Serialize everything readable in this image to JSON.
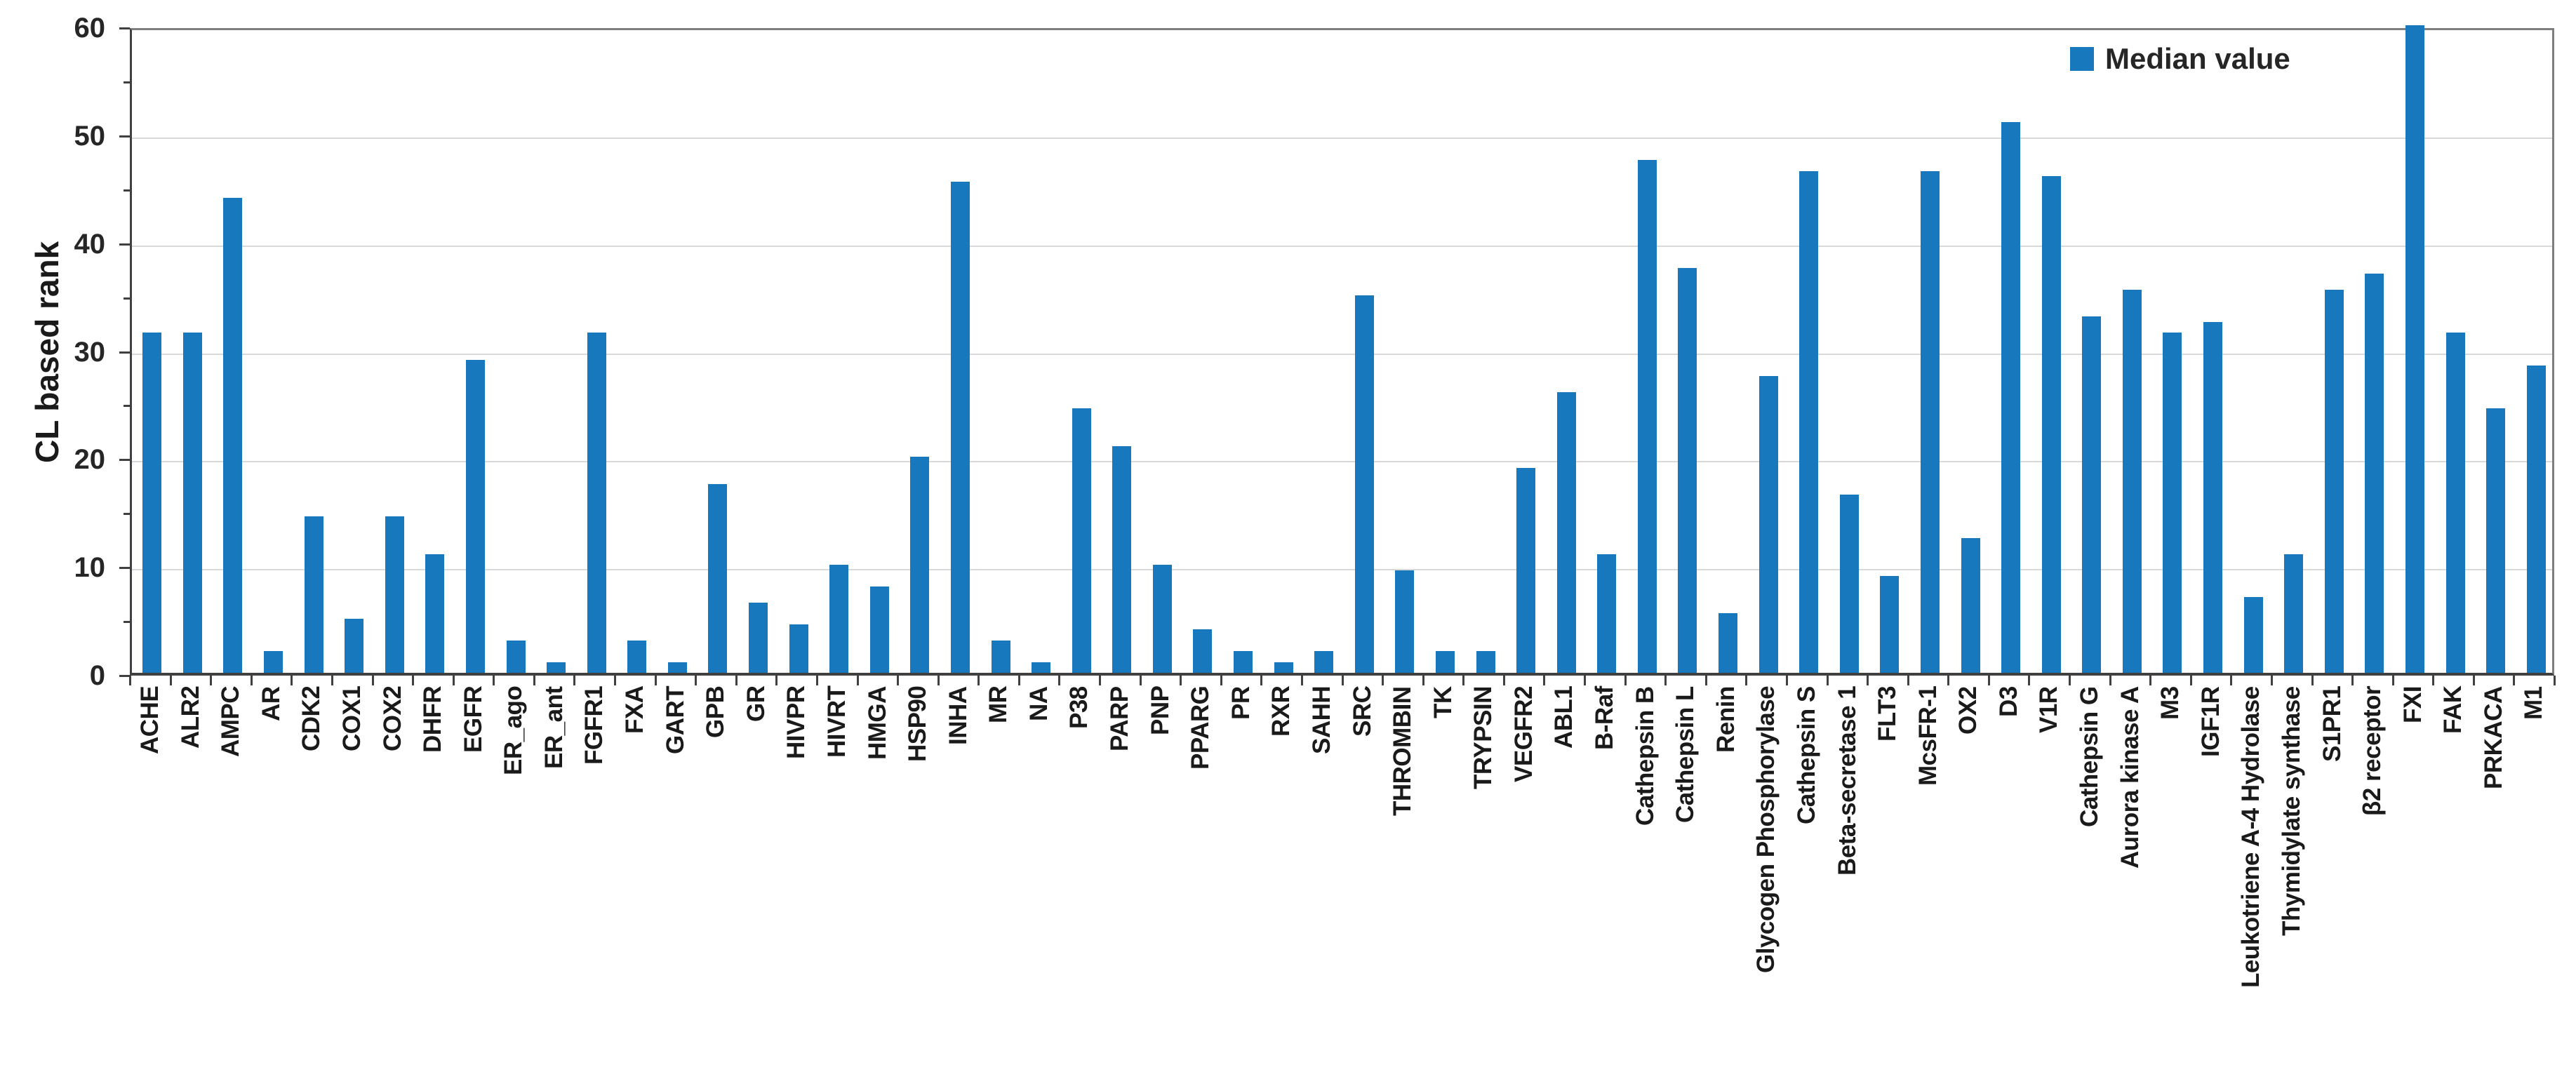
{
  "colors": {
    "bar": "#1778BE",
    "grid": "#D9D9D9",
    "axis": "#404040",
    "plot_border": "#7F7F7F",
    "text": "#1A1A1A"
  },
  "chart_data": {
    "type": "bar",
    "title": "",
    "xlabel": "",
    "ylabel": "CL based rank",
    "ylim": [
      0,
      60
    ],
    "yticks": [
      0,
      10,
      20,
      30,
      40,
      50,
      60
    ],
    "minor_ytick_step": 5,
    "grid": true,
    "legend": {
      "position": "top-right",
      "entries": [
        "Median value"
      ]
    },
    "series_name": "Median value",
    "categories": [
      "ACHE",
      "ALR2",
      "AMPC",
      "AR",
      "CDK2",
      "COX1",
      "COX2",
      "DHFR",
      "EGFR",
      "ER_ago",
      "ER_ant",
      "FGFR1",
      "FXA",
      "GART",
      "GPB",
      "GR",
      "HIVPR",
      "HIVRT",
      "HMGA",
      "HSP90",
      "INHA",
      "MR",
      "NA",
      "P38",
      "PARP",
      "PNP",
      "PPARG",
      "PR",
      "RXR",
      "SAHH",
      "SRC",
      "THROMBIN",
      "TK",
      "TRYPSIN",
      "VEGFR2",
      "ABL1",
      "B-Raf",
      "Cathepsin B",
      "Cathepsin L",
      "Renin",
      "Glycogen Phosphorylase",
      "Cathepsin S",
      "Beta-secretase 1",
      "FLT3",
      "McsFR-1",
      "OX2",
      "D3",
      "V1R",
      "Cathepsin G",
      "Aurora kinase A",
      "M3",
      "IGF1R",
      "Leukotriene A-4 Hydrolase",
      "Thymidylate synthase",
      "S1PR1",
      "β2 receptor",
      "FXI",
      "FAK",
      "PRKACA",
      "M1"
    ],
    "values": [
      31.5,
      31.5,
      44,
      2,
      14.5,
      5,
      14.5,
      11,
      29,
      3,
      1,
      31.5,
      3,
      1,
      17.5,
      6.5,
      4.5,
      10,
      8,
      20,
      45.5,
      3,
      1,
      24.5,
      21,
      10,
      4,
      2,
      1,
      2,
      35,
      9.5,
      2,
      2,
      19,
      26,
      11,
      47.5,
      37.5,
      5.5,
      27.5,
      46.5,
      16.5,
      9,
      46.5,
      12.5,
      51,
      46,
      33,
      35.5,
      31.5,
      32.5,
      7,
      11,
      35.5,
      37,
      60,
      31.5,
      24.5,
      28.5
    ]
  }
}
